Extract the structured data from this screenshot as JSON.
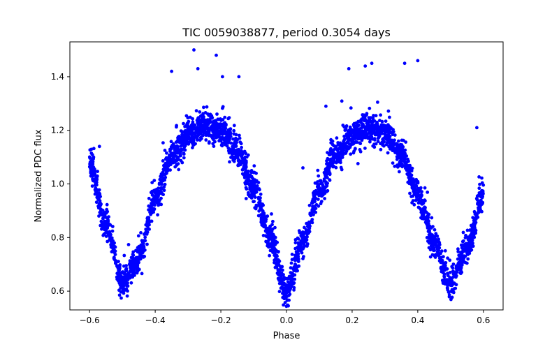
{
  "chart_data": {
    "type": "scatter",
    "title": "TIC 0059038877, period 0.3054 days",
    "xlabel": "Phase",
    "ylabel": "Normalized PDC flux",
    "xlim": [
      -0.66,
      0.66
    ],
    "ylim": [
      0.53,
      1.53
    ],
    "xticks": [
      -0.6,
      -0.4,
      -0.2,
      0.0,
      0.2,
      0.4,
      0.6
    ],
    "xtick_labels": [
      "−0.6",
      "−0.4",
      "−0.2",
      "0.0",
      "0.2",
      "0.4",
      "0.6"
    ],
    "yticks": [
      0.6,
      0.8,
      1.0,
      1.2,
      1.4
    ],
    "ytick_labels": [
      "0.6",
      "0.8",
      "1.0",
      "1.2",
      "1.4"
    ],
    "grid": false,
    "marker_color": "#0000ff",
    "period_days": 0.3054,
    "curve_keypoints": {
      "phase": [
        -0.6,
        -0.55,
        -0.5,
        -0.45,
        -0.4,
        -0.35,
        -0.3,
        -0.25,
        -0.2,
        -0.15,
        -0.1,
        -0.05,
        0.0,
        0.05,
        0.1,
        0.15,
        0.2,
        0.25,
        0.3,
        0.35,
        0.4,
        0.45,
        0.5,
        0.55,
        0.6
      ],
      "flux": [
        1.08,
        0.85,
        0.63,
        0.72,
        0.95,
        1.1,
        1.18,
        1.21,
        1.2,
        1.12,
        0.98,
        0.8,
        0.6,
        0.78,
        0.97,
        1.11,
        1.18,
        1.21,
        1.19,
        1.11,
        0.96,
        0.78,
        0.62,
        0.76,
        0.96
      ]
    },
    "outliers": [
      {
        "x": -0.282,
        "y": 1.5
      },
      {
        "x": -0.214,
        "y": 1.48
      },
      {
        "x": -0.35,
        "y": 1.42
      },
      {
        "x": -0.27,
        "y": 1.43
      },
      {
        "x": 0.19,
        "y": 1.43
      },
      {
        "x": 0.26,
        "y": 1.45
      },
      {
        "x": 0.24,
        "y": 1.44
      },
      {
        "x": 0.36,
        "y": 1.45
      },
      {
        "x": 0.4,
        "y": 1.46
      },
      {
        "x": 0.12,
        "y": 1.29
      },
      {
        "x": -0.145,
        "y": 1.4
      },
      {
        "x": -0.195,
        "y": 1.4
      },
      {
        "x": 0.58,
        "y": 1.21
      },
      {
        "x": -0.57,
        "y": 1.14
      },
      {
        "x": 0.05,
        "y": 1.06
      }
    ]
  }
}
